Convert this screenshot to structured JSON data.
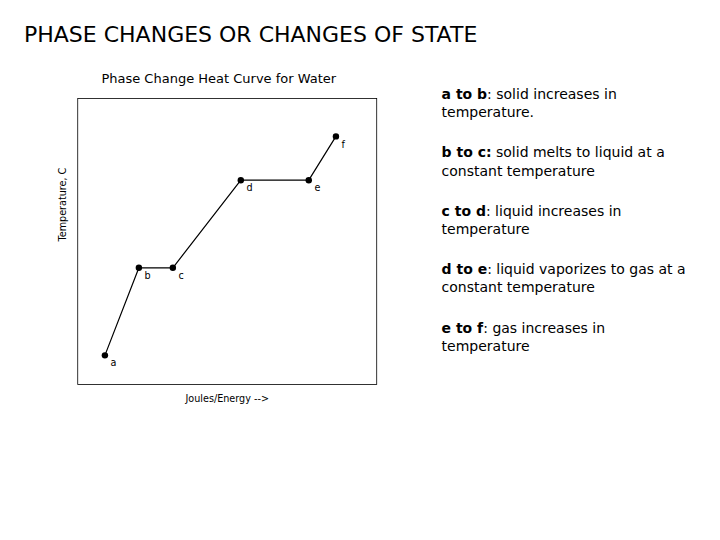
{
  "chart_data": {
    "type": "line",
    "title": "PHASE CHANGES OR CHANGES OF STATE",
    "subtitle": "Phase Change Heat Curve for Water",
    "xlabel": "Joules/Energy -->",
    "ylabel": "Temperature, C",
    "x": [
      1,
      2,
      3,
      5,
      7,
      7.8
    ],
    "values": [
      1,
      4,
      4,
      7,
      7,
      8.5
    ],
    "color": "#000000",
    "marker": "circle",
    "xlim": [
      0.2,
      9.0
    ],
    "ylim": [
      0.0,
      9.8
    ],
    "xticks": [],
    "yticks": [],
    "tick_labels": false,
    "grid": false,
    "annotations": [
      {
        "text": "a",
        "x": 1,
        "y": 1
      },
      {
        "text": "b",
        "x": 2,
        "y": 4
      },
      {
        "text": "c",
        "x": 3,
        "y": 4
      },
      {
        "text": "d",
        "x": 5,
        "y": 7
      },
      {
        "text": "e",
        "x": 7,
        "y": 7
      },
      {
        "text": "f",
        "x": 7.8,
        "y": 8.5
      }
    ],
    "descriptions": [
      {
        "bold": "a to b",
        "text": ": solid increases in\ntemperature."
      },
      {
        "bold": "b to c:",
        "text": " solid melts to liquid at a\nconstant temperature"
      },
      {
        "bold": "c to d",
        "text": ": liquid increases in\ntemperature"
      },
      {
        "bold": "d to e",
        "text": ": liquid vaporizes to gas at a\nconstant temperature"
      },
      {
        "bold": "e to f",
        "text": ": gas increases in\ntemperature"
      }
    ]
  }
}
